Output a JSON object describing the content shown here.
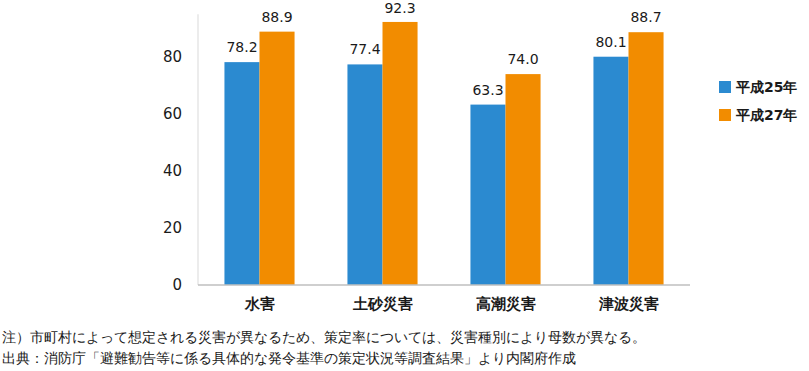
{
  "chart_data": {
    "type": "bar",
    "categories": [
      "水害",
      "土砂災害",
      "高潮災害",
      "津波災害"
    ],
    "series": [
      {
        "name": "平成25年",
        "color": "#2b8ad0",
        "values": [
          78.2,
          77.4,
          63.3,
          80.1
        ]
      },
      {
        "name": "平成27年",
        "color": "#f28c00",
        "values": [
          88.9,
          92.3,
          74.0,
          88.7
        ],
        "value_labels": [
          "88.9",
          "92.3",
          "74.0",
          "88.7"
        ]
      }
    ],
    "ylim": [
      0,
      95
    ],
    "yticks": [
      0,
      20,
      40,
      60,
      80
    ],
    "grid": false,
    "legend": "right",
    "data_labels": true,
    "annotations": [
      "注）市町村によって想定される災害が異なるため、策定率については、災害種別により母数が異なる。",
      "出典：消防庁「避難勧告等に係る具体的な発令基準の策定状況等調査結果」より内閣府作成"
    ]
  }
}
